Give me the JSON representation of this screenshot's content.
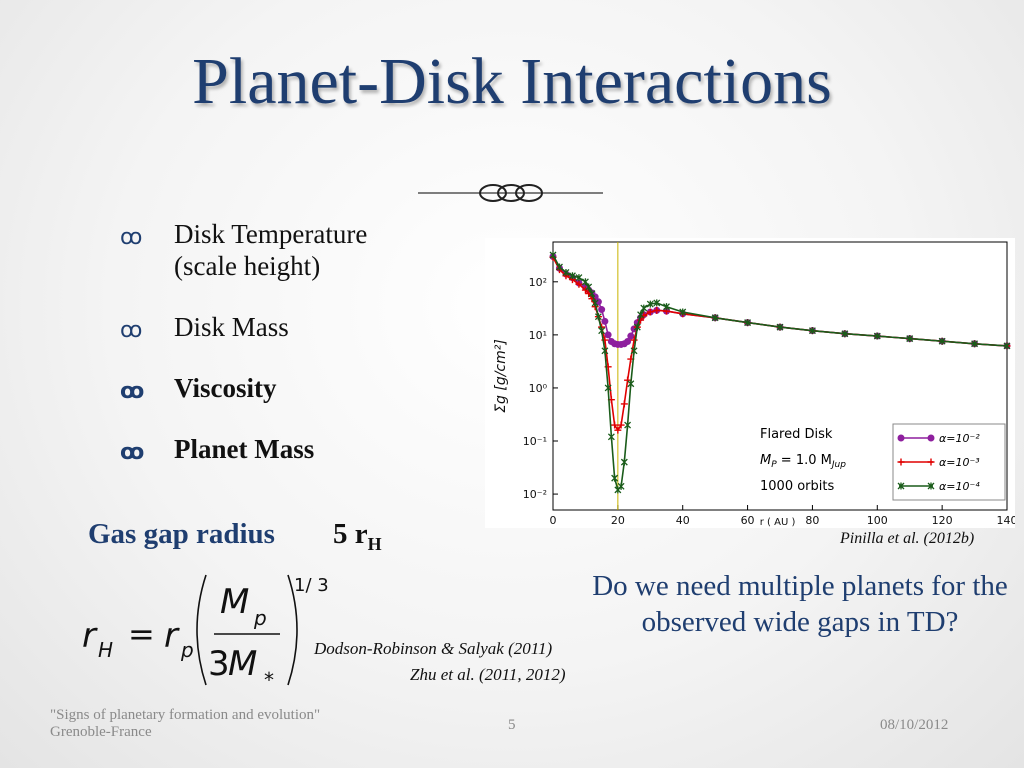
{
  "title": "Planet-Disk Interactions",
  "bullets": [
    {
      "line1": "Disk Temperature",
      "line2": "(scale height)",
      "bold": false
    },
    {
      "line1": "Disk Mass",
      "line2": "",
      "bold": false
    },
    {
      "line1": "Viscosity",
      "line2": "",
      "bold": true
    },
    {
      "line1": "Planet Mass",
      "line2": "",
      "bold": true
    }
  ],
  "bullet_icon": "link-bullet-icon",
  "gap": {
    "label": "Gas gap radius",
    "value": "5 r",
    "value_sub": "H"
  },
  "refs": {
    "pinilla": "Pinilla et al. (2012b)",
    "dodson": "Dodson-Robinson & Salyak (2011)",
    "zhu": "Zhu et al. (2011, 2012)"
  },
  "question": "Do we need multiple planets for the observed  wide gaps in TD?",
  "footer": {
    "left_line1": "\"Signs of planetary formation and evolution\"",
    "left_line2": "Grenoble-France",
    "page": "5",
    "date": "08/10/2012"
  },
  "colors": {
    "title": "#1f3e70",
    "alpha_1e-2": "#8e1f9e",
    "alpha_1e-3": "#e00000",
    "alpha_1e-4": "#1a5c1a",
    "planet_line": "#c8b400"
  },
  "chart_data": {
    "type": "line",
    "xlabel": "r ( AU )",
    "ylabel": "Σg [g/cm²]",
    "xlim": [
      0,
      140
    ],
    "ylim_log10": [
      -2.3,
      2.75
    ],
    "x_ticks": [
      "0",
      "20",
      "40",
      "60",
      "80",
      "100",
      "120",
      "140"
    ],
    "y_ticks": [
      "10²",
      "10¹",
      "10⁰",
      "10⁻¹",
      "10⁻²"
    ],
    "planet_position": 20,
    "annotation": {
      "line1": "Flared Disk",
      "line2": "M",
      "line2_sub": "P",
      "line2_rest": " = 1.0 M",
      "line2_rest_sub": "Jup",
      "line3": "1000 orbits"
    },
    "series": [
      {
        "name": "α=10⁻²",
        "color": "#8e1f9e",
        "marker": "o",
        "x": [
          0,
          2,
          4,
          6,
          8,
          10,
          11,
          12,
          13,
          14,
          15,
          16,
          17,
          18,
          19,
          20,
          21,
          22,
          23,
          24,
          25,
          26,
          27,
          28,
          30,
          32,
          35,
          40,
          50,
          60,
          70,
          80,
          90,
          100,
          110,
          120,
          130,
          140
        ],
        "y": [
          300,
          180,
          140,
          120,
          95,
          80,
          70,
          62,
          52,
          42,
          30,
          18,
          10,
          7.5,
          6.8,
          6.6,
          6.6,
          6.8,
          7.5,
          9.5,
          13,
          17,
          21,
          24,
          27,
          29,
          28,
          25,
          21,
          17,
          14,
          12,
          10.5,
          9.5,
          8.5,
          7.6,
          6.8,
          6.2
        ]
      },
      {
        "name": "α=10⁻³",
        "color": "#e00000",
        "marker": "+",
        "x": [
          0,
          2,
          4,
          6,
          8,
          10,
          11,
          12,
          13,
          14,
          15,
          16,
          17,
          18,
          19,
          20,
          21,
          22,
          23,
          24,
          25,
          26,
          27,
          28,
          30,
          32,
          35,
          40,
          50,
          60,
          70,
          80,
          90,
          100,
          110,
          120,
          130,
          140
        ],
        "y": [
          290,
          170,
          130,
          110,
          90,
          70,
          60,
          48,
          34,
          22,
          14,
          8,
          2.5,
          0.6,
          0.2,
          0.16,
          0.2,
          0.5,
          1.4,
          3.5,
          8,
          14,
          19,
          23,
          27,
          29,
          28,
          25,
          21,
          17,
          14,
          12,
          10.5,
          9.5,
          8.5,
          7.6,
          6.8,
          6.2
        ]
      },
      {
        "name": "α=10⁻⁴",
        "color": "#1a5c1a",
        "marker": "*",
        "x": [
          0,
          2,
          4,
          6,
          8,
          10,
          11,
          12,
          13,
          14,
          15,
          16,
          17,
          18,
          19,
          20,
          21,
          22,
          23,
          24,
          25,
          26,
          27,
          28,
          30,
          32,
          35,
          40,
          50,
          60,
          70,
          80,
          90,
          100,
          110,
          120,
          130,
          140
        ],
        "y": [
          320,
          190,
          150,
          130,
          120,
          100,
          80,
          60,
          40,
          22,
          12,
          5,
          1,
          0.12,
          0.02,
          0.012,
          0.014,
          0.04,
          0.2,
          1.2,
          5,
          14,
          24,
          32,
          38,
          40,
          34,
          27,
          21,
          17,
          14,
          12,
          10.5,
          9.5,
          8.5,
          7.6,
          6.8,
          6.2
        ]
      }
    ]
  }
}
